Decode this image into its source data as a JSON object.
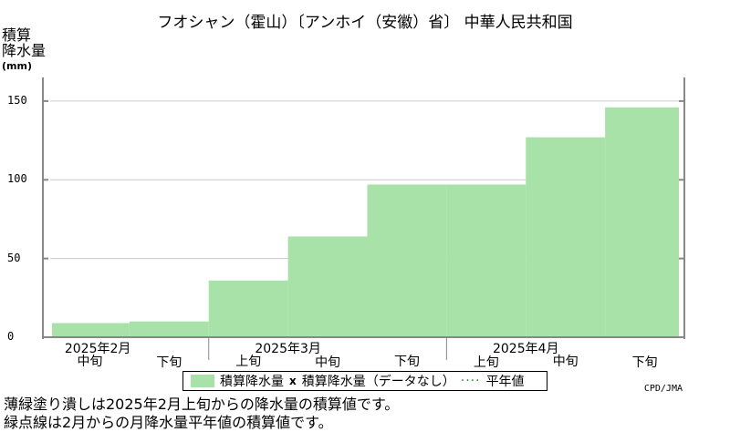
{
  "title": "フオシャン（霍山）〔アンホイ（安徽）省〕 中華人民共和国",
  "y_axis_label_lines": [
    "積算",
    "降水量"
  ],
  "y_axis_unit": "(mm)",
  "legend": {
    "series_label": "積算降水量",
    "missing_marker": "x",
    "missing_label": "積算降水量（データなし）",
    "normal_label": "平年値"
  },
  "credit": "CPD/JMA",
  "notes": [
    "薄緑塗り潰しは2025年2月上旬からの降水量の積算値です。",
    "緑点線は2月からの月降水量平年値の積算値です。"
  ],
  "colors": {
    "fill": "#a8e2a8",
    "axis": "#888888",
    "grid": "#cccccc"
  },
  "chart_data": {
    "type": "area",
    "title": "フオシャン（霍山）〔アンホイ（安徽）省〕 中華人民共和国",
    "ylabel": "積算降水量(mm)",
    "ylim": [
      0,
      165
    ],
    "yticks": [
      0,
      50,
      100,
      150
    ],
    "grid": true,
    "legend_placement": "bottom",
    "periods": [
      "2025年2月中旬",
      "2025年2月下旬",
      "2025年3月上旬",
      "2025年3月中旬",
      "2025年3月下旬",
      "2025年4月上旬",
      "2025年4月中旬",
      "2025年4月下旬"
    ],
    "series": [
      {
        "name": "積算降水量",
        "values": [
          9,
          10,
          36,
          64,
          97,
          97,
          127,
          146
        ]
      }
    ],
    "x_tick_labels": [
      "中旬",
      "下旬",
      "上旬",
      "中旬",
      "下旬",
      "上旬",
      "中旬",
      "下旬"
    ],
    "month_labels": [
      {
        "label": "2025年2月",
        "start_index": 0
      },
      {
        "label": "2025年3月",
        "start_index": 2
      },
      {
        "label": "2025年4月",
        "start_index": 5
      }
    ]
  }
}
